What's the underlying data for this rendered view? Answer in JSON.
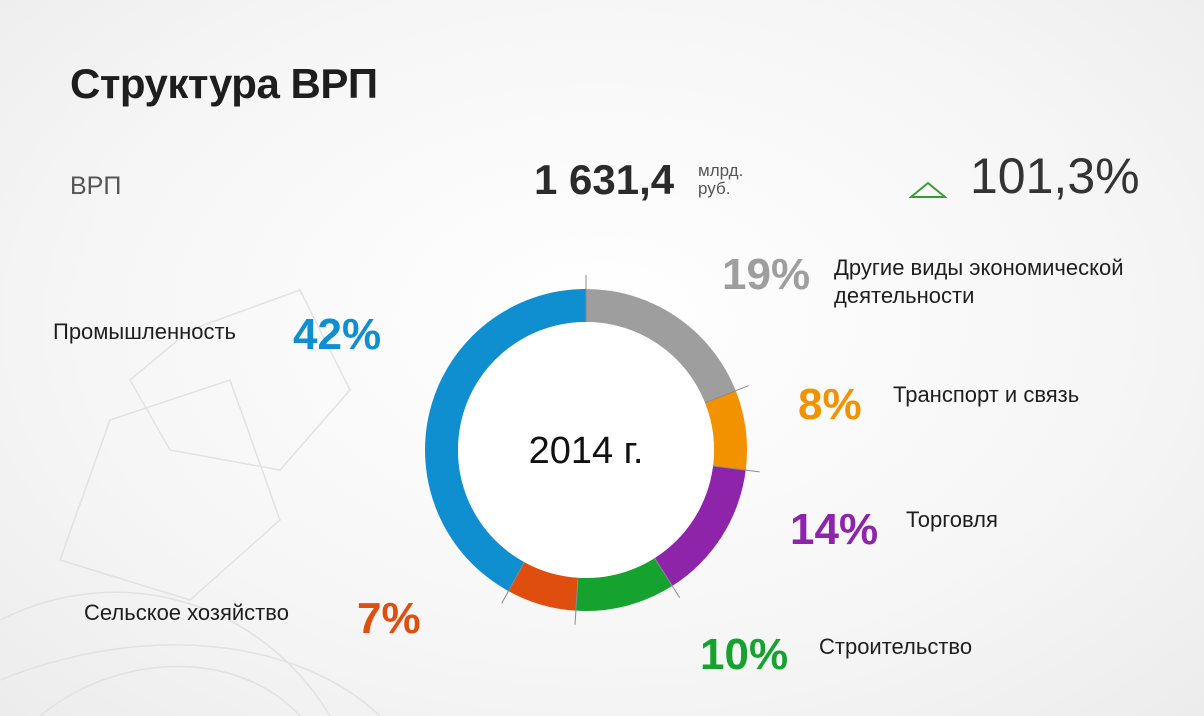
{
  "title": "Структура ВРП",
  "grp": {
    "label": "ВРП",
    "value": "1 631,4",
    "unit": "млрд. руб.",
    "growth": "101,3%",
    "growth_icon": "triangle-up-outline-icon",
    "growth_color": "#3a9a3a"
  },
  "chart_data": {
    "type": "pie",
    "center_label": "2014 г.",
    "slices": [
      {
        "name": "Другие виды экономической деятельности",
        "label": "19%",
        "value": 19,
        "color": "#9e9e9e"
      },
      {
        "name": "Транспорт и связь",
        "label": "8%",
        "value": 8,
        "color": "#f39200"
      },
      {
        "name": "Торговля",
        "label": "14%",
        "value": 14,
        "color": "#8e24aa"
      },
      {
        "name": "Строительство",
        "label": "10%",
        "value": 10,
        "color": "#16a22f"
      },
      {
        "name": "Сельское хозяйство",
        "label": "7%",
        "value": 7,
        "color": "#e04e0f"
      },
      {
        "name": "Промышленность",
        "label": "42%",
        "value": 42,
        "color": "#0f8fd0"
      }
    ]
  }
}
